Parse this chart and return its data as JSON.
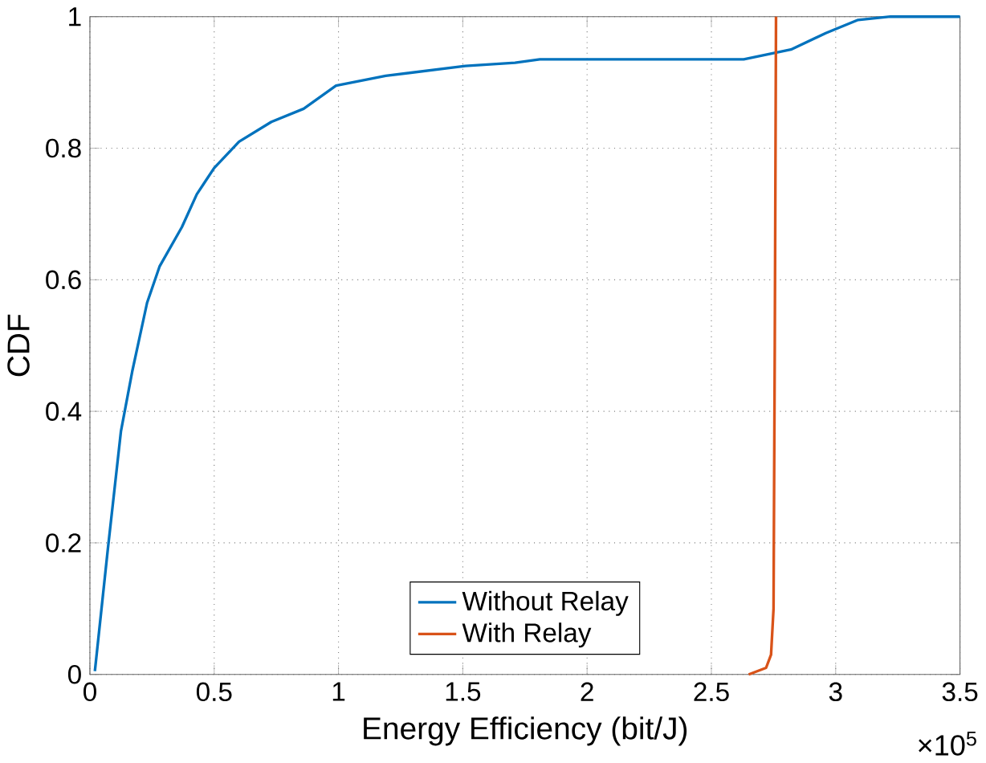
{
  "chart_data": {
    "type": "line",
    "xlabel": "Energy Efficiency (bit/J)",
    "ylabel": "CDF",
    "annotations": [
      "×10$^{5}$"
    ],
    "xlim": [
      0,
      3.5
    ],
    "ylim": [
      0,
      1
    ],
    "xticks": [
      0,
      0.5,
      1,
      1.5,
      2,
      2.5,
      3,
      3.5
    ],
    "yticks": [
      0,
      0.2,
      0.4,
      0.6,
      0.8,
      1
    ],
    "grid": true,
    "legend": "bottom",
    "series": [
      {
        "name": "Without Relay",
        "color": "#0072bd",
        "x": [
          0.02,
          0.072,
          0.125,
          0.17,
          0.23,
          0.28,
          0.37,
          0.43,
          0.5,
          0.6,
          0.73,
          0.86,
          0.99,
          1.19,
          1.51,
          1.71,
          1.81,
          2.63,
          2.82,
          2.96,
          3.09,
          3.22,
          3.5
        ],
        "values": [
          0.005,
          0.19,
          0.37,
          0.46,
          0.565,
          0.62,
          0.68,
          0.73,
          0.77,
          0.81,
          0.84,
          0.86,
          0.895,
          0.91,
          0.925,
          0.93,
          0.935,
          0.935,
          0.95,
          0.975,
          0.995,
          1,
          1
        ]
      },
      {
        "name": "With Relay",
        "color": "#d95319",
        "x": [
          2.65,
          2.72,
          2.74,
          2.75,
          2.755,
          2.76
        ],
        "values": [
          0,
          0.01,
          0.03,
          0.1,
          0.5,
          1
        ]
      }
    ]
  }
}
